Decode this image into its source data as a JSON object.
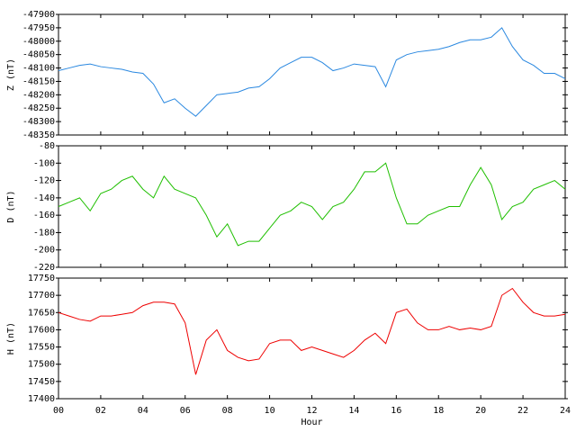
{
  "chart_data": [
    {
      "type": "line",
      "y_label": "Z (nT)",
      "x": [
        0,
        0.5,
        1,
        1.5,
        2,
        2.5,
        3,
        3.5,
        4,
        4.5,
        5,
        5.5,
        6,
        6.5,
        7,
        7.5,
        8,
        8.5,
        9,
        9.5,
        10,
        10.5,
        11,
        11.5,
        12,
        12.5,
        13,
        13.5,
        14,
        14.5,
        15,
        15.5,
        16,
        16.5,
        17,
        17.5,
        18,
        18.5,
        19,
        19.5,
        20,
        20.5,
        21,
        21.5,
        22,
        22.5,
        23,
        23.5,
        24
      ],
      "series": [
        {
          "name": "Z",
          "color": "#2a88e0",
          "values": [
            -48110,
            -48100,
            -48090,
            -48085,
            -48095,
            -48100,
            -48105,
            -48115,
            -48120,
            -48160,
            -48230,
            -48215,
            -48250,
            -48280,
            -48240,
            -48200,
            -48195,
            -48190,
            -48175,
            -48170,
            -48140,
            -48100,
            -48080,
            -48060,
            -48060,
            -48080,
            -48110,
            -48100,
            -48085,
            -48090,
            -48095,
            -48170,
            -48070,
            -48050,
            -48040,
            -48035,
            -48030,
            -48020,
            -48005,
            -47995,
            -47995,
            -47985,
            -47950,
            -48020,
            -48070,
            -48090,
            -48120,
            -48120,
            -48140
          ]
        }
      ],
      "xlim": [
        0,
        24
      ],
      "xticks": [
        0,
        2,
        4,
        6,
        8,
        10,
        12,
        14,
        16,
        18,
        20,
        22,
        24
      ],
      "ylim": [
        -48350,
        -47900
      ],
      "yticks": [
        -48350,
        -48300,
        -48250,
        -48200,
        -48150,
        -48100,
        -48050,
        -48000,
        -47950,
        -47900
      ]
    },
    {
      "type": "line",
      "y_label": "D (nT)",
      "x": [
        0,
        0.5,
        1,
        1.5,
        2,
        2.5,
        3,
        3.5,
        4,
        4.5,
        5,
        5.5,
        6,
        6.5,
        7,
        7.5,
        8,
        8.5,
        9,
        9.5,
        10,
        10.5,
        11,
        11.5,
        12,
        12.5,
        13,
        13.5,
        14,
        14.5,
        15,
        15.5,
        16,
        16.5,
        17,
        17.5,
        18,
        18.5,
        19,
        19.5,
        20,
        20.5,
        21,
        21.5,
        22,
        22.5,
        23,
        23.5,
        24
      ],
      "series": [
        {
          "name": "D",
          "color": "#1fbf00",
          "values": [
            -150,
            -145,
            -140,
            -155,
            -135,
            -130,
            -120,
            -115,
            -130,
            -140,
            -115,
            -130,
            -135,
            -140,
            -160,
            -185,
            -170,
            -195,
            -190,
            -190,
            -175,
            -160,
            -155,
            -145,
            -150,
            -165,
            -150,
            -145,
            -130,
            -110,
            -110,
            -100,
            -140,
            -170,
            -170,
            -160,
            -155,
            -150,
            -150,
            -125,
            -105,
            -125,
            -165,
            -150,
            -145,
            -130,
            -125,
            -120,
            -130
          ]
        }
      ],
      "xlim": [
        0,
        24
      ],
      "xticks": [
        0,
        2,
        4,
        6,
        8,
        10,
        12,
        14,
        16,
        18,
        20,
        22,
        24
      ],
      "ylim": [
        -220,
        -80
      ],
      "yticks": [
        -220,
        -200,
        -180,
        -160,
        -140,
        -120,
        -100,
        -80
      ]
    },
    {
      "type": "line",
      "y_label": "H (nT)",
      "x_label": "Hour",
      "x": [
        0,
        0.5,
        1,
        1.5,
        2,
        2.5,
        3,
        3.5,
        4,
        4.5,
        5,
        5.5,
        6,
        6.5,
        7,
        7.5,
        8,
        8.5,
        9,
        9.5,
        10,
        10.5,
        11,
        11.5,
        12,
        12.5,
        13,
        13.5,
        14,
        14.5,
        15,
        15.5,
        16,
        16.5,
        17,
        17.5,
        18,
        18.5,
        19,
        19.5,
        20,
        20.5,
        21,
        21.5,
        22,
        22.5,
        23,
        23.5,
        24
      ],
      "series": [
        {
          "name": "H",
          "color": "#ee0000",
          "values": [
            17650,
            17640,
            17630,
            17625,
            17640,
            17640,
            17645,
            17650,
            17670,
            17680,
            17680,
            17675,
            17620,
            17470,
            17570,
            17600,
            17540,
            17520,
            17510,
            17515,
            17560,
            17570,
            17570,
            17540,
            17550,
            17540,
            17530,
            17520,
            17540,
            17570,
            17590,
            17560,
            17650,
            17660,
            17620,
            17600,
            17600,
            17610,
            17600,
            17605,
            17600,
            17610,
            17700,
            17720,
            17680,
            17650,
            17640,
            17640,
            17645
          ]
        }
      ],
      "xlim": [
        0,
        24
      ],
      "xticks": [
        {
          "value": 0,
          "label": "00"
        },
        {
          "value": 2,
          "label": "02"
        },
        {
          "value": 4,
          "label": "04"
        },
        {
          "value": 6,
          "label": "06"
        },
        {
          "value": 8,
          "label": "08"
        },
        {
          "value": 10,
          "label": "10"
        },
        {
          "value": 12,
          "label": "12"
        },
        {
          "value": 14,
          "label": "14"
        },
        {
          "value": 16,
          "label": "16"
        },
        {
          "value": 18,
          "label": "18"
        },
        {
          "value": 20,
          "label": "20"
        },
        {
          "value": 22,
          "label": "22"
        },
        {
          "value": 24,
          "label": "24"
        }
      ],
      "ylim": [
        17400,
        17750
      ],
      "yticks": [
        17400,
        17450,
        17500,
        17550,
        17600,
        17650,
        17700,
        17750
      ]
    }
  ]
}
